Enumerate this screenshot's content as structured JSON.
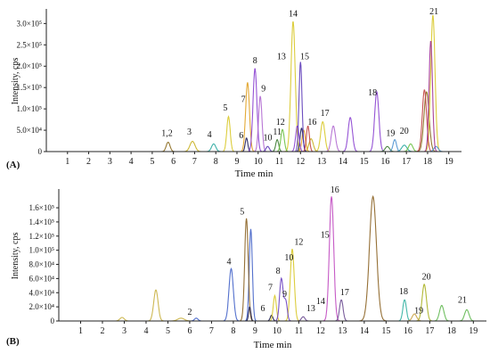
{
  "chart_data": [
    {
      "panel": "(A)",
      "type": "line",
      "ylabel": "Intensity, cps",
      "xlabel": "Time min",
      "xlim": [
        0,
        19.6
      ],
      "ylim": [
        0,
        3.3
      ],
      "xticks": [
        "1",
        "2",
        "3",
        "4",
        "5",
        "6",
        "7",
        "8",
        "9",
        "10",
        "11",
        "12",
        "13",
        "14",
        "15",
        "16",
        "17",
        "18",
        "19"
      ],
      "yticks": [
        "0",
        "5.0×10⁴",
        "1.0×10⁵",
        "1.5×10⁵",
        "2.0×10⁵",
        "2.5×10⁵",
        "3.0×10⁵"
      ],
      "ytick_values": [
        0,
        0.5,
        1.0,
        1.5,
        2.0,
        2.5,
        3.0
      ],
      "y_unit_note": "y values in units of 1×10⁵ cps",
      "series": [
        {
          "color": "#8b6a1e",
          "peaks": [
            [
              5.75,
              0.22,
              0.09
            ],
            [
              17.95,
              1.4,
              0.12
            ]
          ]
        },
        {
          "color": "#c8b020",
          "peaks": [
            [
              6.9,
              0.24,
              0.12
            ],
            [
              12.5,
              0.3,
              0.1
            ]
          ]
        },
        {
          "color": "#2aa8a0",
          "peaks": [
            [
              7.9,
              0.18,
              0.1
            ],
            [
              16.9,
              0.15,
              0.12
            ]
          ]
        },
        {
          "color": "#d8c828",
          "peaks": [
            [
              8.6,
              0.82,
              0.08
            ],
            [
              11.65,
              3.05,
              0.1
            ],
            [
              13.05,
              0.7,
              0.1
            ],
            [
              18.25,
              3.2,
              0.1
            ]
          ]
        },
        {
          "color": "#e0a020",
          "peaks": [
            [
              9.5,
              1.62,
              0.09
            ],
            [
              12.15,
              0.5,
              0.08
            ]
          ]
        },
        {
          "color": "#1a1a5a",
          "peaks": [
            [
              9.45,
              0.32,
              0.06
            ],
            [
              12.05,
              0.55,
              0.07
            ]
          ]
        },
        {
          "color": "#8a40d0",
          "peaks": [
            [
              9.85,
              1.95,
              0.09
            ],
            [
              11.85,
              0.6,
              0.08
            ],
            [
              15.6,
              1.4,
              0.1
            ],
            [
              14.35,
              0.8,
              0.1
            ]
          ]
        },
        {
          "color": "#b068d0",
          "peaks": [
            [
              10.1,
              1.3,
              0.08
            ],
            [
              13.55,
              0.6,
              0.1
            ]
          ]
        },
        {
          "color": "#5c3ab8",
          "peaks": [
            [
              10.45,
              0.12,
              0.08
            ],
            [
              12.0,
              2.1,
              0.07
            ]
          ]
        },
        {
          "color": "#3a7a30",
          "peaks": [
            [
              10.9,
              0.28,
              0.07
            ],
            [
              16.1,
              0.12,
              0.1
            ]
          ]
        },
        {
          "color": "#6ac040",
          "peaks": [
            [
              11.15,
              0.52,
              0.08
            ],
            [
              17.2,
              0.18,
              0.1
            ]
          ]
        },
        {
          "color": "#c04040",
          "peaks": [
            [
              12.35,
              0.6,
              0.07
            ],
            [
              17.85,
              1.45,
              0.1
            ]
          ]
        },
        {
          "color": "#4a90d0",
          "peaks": [
            [
              16.45,
              0.28,
              0.08
            ],
            [
              18.4,
              0.12,
              0.1
            ]
          ]
        },
        {
          "color": "#a03090",
          "peaks": [
            [
              18.15,
              2.6,
              0.08
            ]
          ]
        }
      ],
      "annotations": [
        {
          "text": "1,2",
          "x": 5.7,
          "y": 0.3
        },
        {
          "text": "3",
          "x": 6.75,
          "y": 0.33
        },
        {
          "text": "4",
          "x": 7.7,
          "y": 0.27
        },
        {
          "text": "5",
          "x": 8.45,
          "y": 0.9
        },
        {
          "text": "6",
          "x": 9.2,
          "y": 0.25
        },
        {
          "text": "7",
          "x": 9.3,
          "y": 1.1
        },
        {
          "text": "8",
          "x": 9.85,
          "y": 2.0
        },
        {
          "text": "9",
          "x": 10.25,
          "y": 1.35
        },
        {
          "text": "10",
          "x": 10.45,
          "y": 0.2
        },
        {
          "text": "11",
          "x": 10.9,
          "y": 0.33
        },
        {
          "text": "12",
          "x": 11.05,
          "y": 0.56
        },
        {
          "text": "13",
          "x": 11.1,
          "y": 2.1
        },
        {
          "text": "14",
          "x": 11.65,
          "y": 3.1
        },
        {
          "text": "15",
          "x": 12.2,
          "y": 2.1
        },
        {
          "text": "16",
          "x": 12.55,
          "y": 0.56
        },
        {
          "text": "17",
          "x": 13.15,
          "y": 0.77
        },
        {
          "text": "18",
          "x": 15.4,
          "y": 1.25
        },
        {
          "text": "19",
          "x": 16.25,
          "y": 0.3
        },
        {
          "text": "20",
          "x": 16.9,
          "y": 0.36
        },
        {
          "text": "21",
          "x": 18.3,
          "y": 3.15
        }
      ]
    },
    {
      "panel": "(B)",
      "type": "line",
      "ylabel": "Intensity, cps",
      "xlabel": "Time min",
      "xlim": [
        0,
        19.6
      ],
      "ylim": [
        0,
        1.84
      ],
      "xticks": [
        "1",
        "2",
        "3",
        "4",
        "5",
        "6",
        "7",
        "8",
        "9",
        "10",
        "11",
        "12",
        "13",
        "14",
        "15",
        "16",
        "17",
        "18",
        "19"
      ],
      "yticks": [
        "0",
        "2.0×10⁴",
        "4.0×10⁴",
        "6.0×10⁴",
        "8.0×10⁴",
        "1.0×10⁵",
        "1.2×10⁵",
        "1.4×10⁵",
        "1.6×10⁵"
      ],
      "ytick_values": [
        0,
        0.2,
        0.4,
        0.6,
        0.8,
        1.0,
        1.2,
        1.4,
        1.6
      ],
      "y_unit_note": "y values in units of 1×10⁵ cps",
      "series": [
        {
          "color": "#c8b040",
          "peaks": [
            [
              2.9,
              0.05,
              0.1
            ],
            [
              4.45,
              0.44,
              0.1
            ],
            [
              5.6,
              0.04,
              0.15
            ]
          ]
        },
        {
          "color": "#4060c8",
          "peaks": [
            [
              6.3,
              0.04,
              0.08
            ],
            [
              7.9,
              0.74,
              0.1
            ],
            [
              8.8,
              1.3,
              0.07
            ]
          ]
        },
        {
          "color": "#8a6020",
          "peaks": [
            [
              8.6,
              1.45,
              0.08
            ],
            [
              14.4,
              1.76,
              0.16
            ]
          ]
        },
        {
          "color": "#1a1a4a",
          "peaks": [
            [
              8.75,
              0.2,
              0.05
            ],
            [
              9.75,
              0.08,
              0.06
            ]
          ]
        },
        {
          "color": "#d8c828",
          "peaks": [
            [
              9.9,
              0.36,
              0.07
            ],
            [
              10.7,
              1.02,
              0.09
            ]
          ]
        },
        {
          "color": "#6a40c0",
          "peaks": [
            [
              10.2,
              0.6,
              0.08
            ],
            [
              10.4,
              0.28,
              0.07
            ]
          ]
        },
        {
          "color": "#c048c0",
          "peaks": [
            [
              12.5,
              1.76,
              0.1
            ]
          ]
        },
        {
          "color": "#6a4a90",
          "peaks": [
            [
              12.95,
              0.3,
              0.08
            ],
            [
              11.2,
              0.06,
              0.08
            ]
          ]
        },
        {
          "color": "#30b0a0",
          "peaks": [
            [
              15.85,
              0.3,
              0.08
            ]
          ]
        },
        {
          "color": "#a8b020",
          "peaks": [
            [
              16.75,
              0.52,
              0.1
            ]
          ]
        },
        {
          "color": "#60b850",
          "peaks": [
            [
              17.55,
              0.22,
              0.1
            ],
            [
              18.7,
              0.16,
              0.1
            ]
          ]
        },
        {
          "color": "#c8a040",
          "peaks": [
            [
              16.3,
              0.1,
              0.1
            ]
          ]
        }
      ],
      "annotations": [
        {
          "text": "2",
          "x": 6.0,
          "y": 0.05
        },
        {
          "text": "4",
          "x": 7.8,
          "y": 0.76
        },
        {
          "text": "5",
          "x": 8.4,
          "y": 1.47
        },
        {
          "text": "6",
          "x": 9.35,
          "y": 0.1
        },
        {
          "text": "7",
          "x": 9.7,
          "y": 0.4
        },
        {
          "text": "8",
          "x": 10.05,
          "y": 0.63
        },
        {
          "text": "9",
          "x": 10.35,
          "y": 0.3
        },
        {
          "text": "10",
          "x": 10.55,
          "y": 0.82
        },
        {
          "text": "12",
          "x": 11.0,
          "y": 1.04
        },
        {
          "text": "13",
          "x": 11.55,
          "y": 0.1
        },
        {
          "text": "14",
          "x": 12.0,
          "y": 0.2
        },
        {
          "text": "15",
          "x": 12.2,
          "y": 1.14
        },
        {
          "text": "16",
          "x": 12.65,
          "y": 1.78
        },
        {
          "text": "17",
          "x": 13.1,
          "y": 0.33
        },
        {
          "text": "18",
          "x": 15.8,
          "y": 0.34
        },
        {
          "text": "19",
          "x": 16.5,
          "y": 0.07
        },
        {
          "text": "20",
          "x": 16.85,
          "y": 0.55
        },
        {
          "text": "21",
          "x": 18.5,
          "y": 0.22
        }
      ]
    }
  ]
}
